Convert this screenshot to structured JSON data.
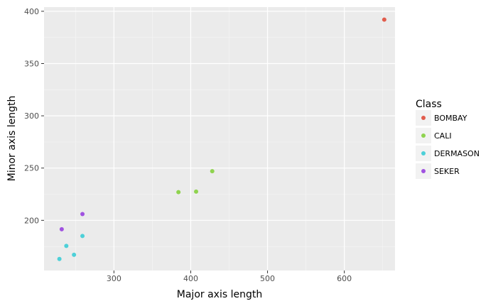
{
  "chart_data": {
    "type": "scatter",
    "xlabel": "Major axis length",
    "ylabel": "Minor axis length",
    "xlim": [
      209,
      666
    ],
    "ylim": [
      152,
      404
    ],
    "x_ticks": [
      300,
      400,
      500,
      600
    ],
    "y_ticks": [
      200,
      250,
      300,
      350,
      400
    ],
    "grid": true,
    "legend": {
      "title": "Class",
      "placement": "right"
    },
    "series": [
      {
        "name": "BOMBAY",
        "color": "#e15c4c",
        "points": [
          [
            652,
            392
          ]
        ]
      },
      {
        "name": "CALI",
        "color": "#8fd34f",
        "points": [
          [
            384,
            227
          ],
          [
            407,
            227.5
          ],
          [
            428,
            247
          ]
        ]
      },
      {
        "name": "DERMASON",
        "color": "#4dd0d8",
        "points": [
          [
            229,
            163
          ],
          [
            238,
            175.5
          ],
          [
            248,
            167
          ],
          [
            259,
            185
          ]
        ]
      },
      {
        "name": "SEKER",
        "color": "#a052e0",
        "points": [
          [
            232,
            191.5
          ],
          [
            259,
            206
          ]
        ]
      }
    ]
  }
}
